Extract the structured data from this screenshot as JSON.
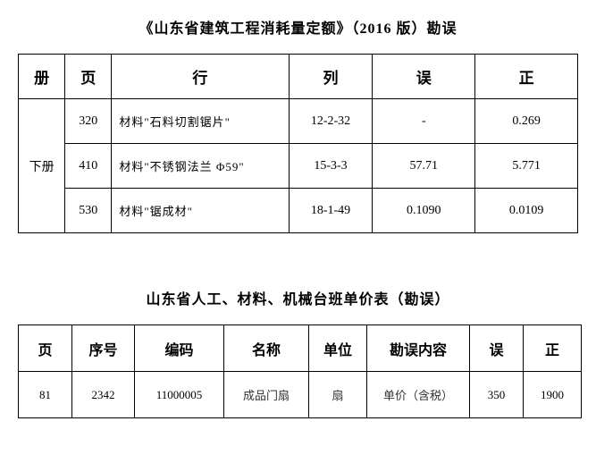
{
  "table1": {
    "title": "《山东省建筑工程消耗量定额》（2016 版）勘误",
    "title_fontsize": 16,
    "border_color": "#000000",
    "background_color": "#ffffff",
    "columns": [
      "册",
      "页",
      "行",
      "列",
      "误",
      "正"
    ],
    "rows": [
      {
        "vol": "下册",
        "page": "320",
        "row": "材料\"石料切割锯片\"",
        "col": "12-2-32",
        "err": "-",
        "cor": "0.269"
      },
      {
        "vol": "下册",
        "page": "410",
        "row": "材料\"不锈钢法兰 Φ59\"",
        "col": "15-3-3",
        "err": "57.71",
        "cor": "5.771"
      },
      {
        "vol": "下册",
        "page": "530",
        "row": "材料\"锯成材\"",
        "col": "18-1-49",
        "err": "0.1090",
        "cor": "0.0109"
      }
    ],
    "volume_rowspan": 3
  },
  "table2": {
    "title": "山东省人工、材料、机械台班单价表（勘误）",
    "title_fontsize": 16,
    "border_color": "#000000",
    "background_color": "#ffffff",
    "columns": [
      "页",
      "序号",
      "编码",
      "名称",
      "单位",
      "勘误内容",
      "误",
      "正"
    ],
    "rows": [
      {
        "page": "81",
        "seq": "2342",
        "code": "11000005",
        "name": "成品门扇",
        "unit": "扇",
        "content": "单价（含税）",
        "err": "350",
        "cor": "1900"
      }
    ]
  }
}
